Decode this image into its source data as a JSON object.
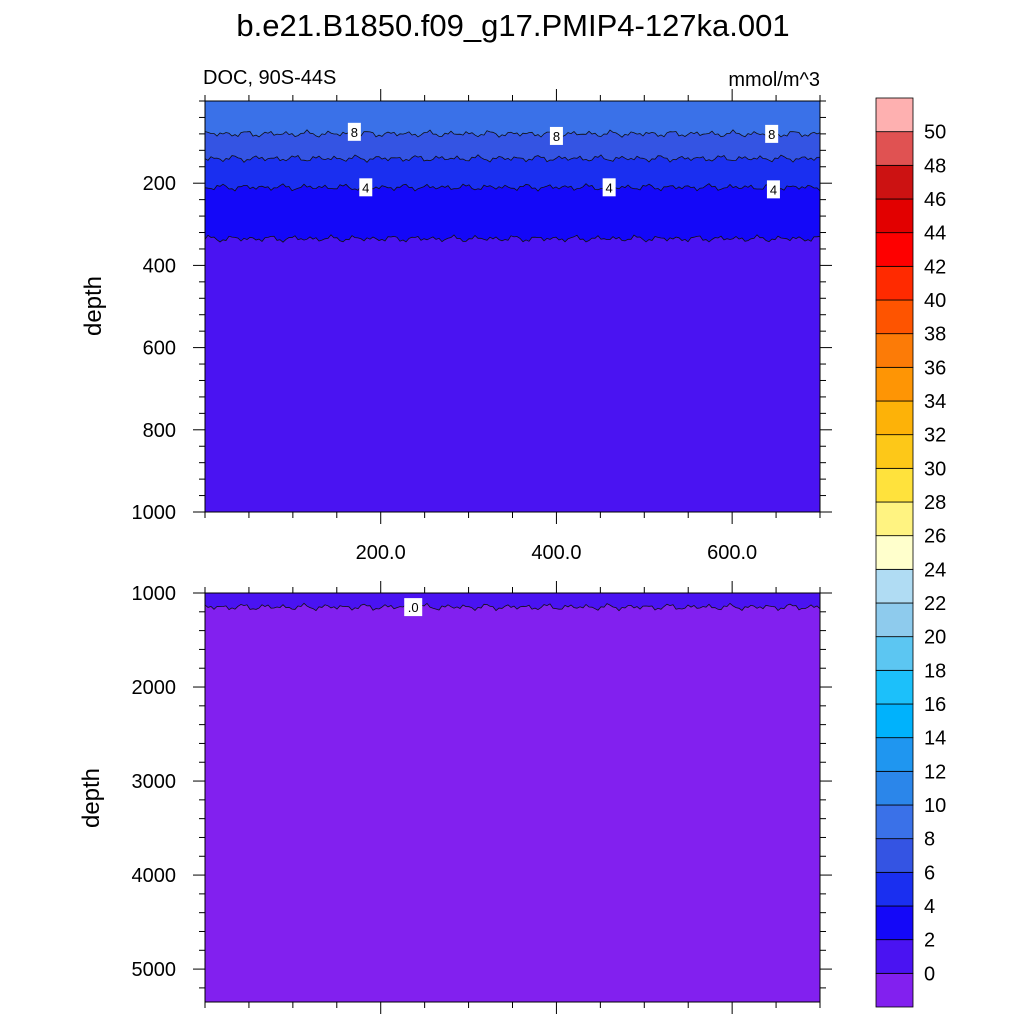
{
  "figure": {
    "title": "b.e21.B1850.f09_g17.PMIP4-127ka.001",
    "variable_label": "DOC, 90S-44S",
    "units_label": "mmol/m^3"
  },
  "chart_data": [
    {
      "type": "heatmap",
      "panel": "upper",
      "ylabel": "depth",
      "xlim": [
        0,
        700
      ],
      "ylim": [
        1000,
        0
      ],
      "x_ticks": [
        200,
        400,
        600
      ],
      "x_tick_labels": [
        "200.0",
        "400.0",
        "600.0"
      ],
      "y_ticks": [
        200,
        400,
        600,
        800,
        1000
      ],
      "y_tick_labels": [
        "200",
        "400",
        "600",
        "800",
        "1000"
      ],
      "layers": [
        {
          "from_depth": 0,
          "to_depth": 80,
          "range": "10-12"
        },
        {
          "from_depth": 80,
          "to_depth": 140,
          "range": "8-10"
        },
        {
          "from_depth": 140,
          "to_depth": 210,
          "range": "6-8"
        },
        {
          "from_depth": 210,
          "to_depth": 335,
          "range": "4-6"
        },
        {
          "from_depth": 335,
          "to_depth": 1000,
          "range": "2-4"
        }
      ],
      "contour_labels": [
        {
          "text": "8",
          "x": 170,
          "depth": 75
        },
        {
          "text": "8",
          "x": 400,
          "depth": 85
        },
        {
          "text": "8",
          "x": 645,
          "depth": 80
        },
        {
          "text": "4",
          "x": 183,
          "depth": 210
        },
        {
          "text": "4",
          "x": 460,
          "depth": 210
        },
        {
          "text": "4",
          "x": 647,
          "depth": 215
        }
      ]
    },
    {
      "type": "heatmap",
      "panel": "lower",
      "ylabel": "depth",
      "xlim": [
        0,
        700
      ],
      "ylim": [
        5350,
        1000
      ],
      "y_ticks": [
        1000,
        2000,
        3000,
        4000,
        5000
      ],
      "y_tick_labels": [
        "1000",
        "2000",
        "3000",
        "4000",
        "5000"
      ],
      "layers": [
        {
          "from_depth": 1000,
          "to_depth": 1150,
          "range": "2-4"
        },
        {
          "from_depth": 1150,
          "to_depth": 5350,
          "range": "0-2"
        }
      ],
      "contour_labels": [
        {
          "text": ".0",
          "x": 237,
          "depth": 1150
        }
      ]
    }
  ],
  "colorbar": {
    "labels": [
      "0",
      "2",
      "4",
      "6",
      "8",
      "10",
      "12",
      "14",
      "16",
      "18",
      "20",
      "22",
      "24",
      "26",
      "28",
      "30",
      "32",
      "34",
      "36",
      "38",
      "40",
      "42",
      "44",
      "46",
      "48",
      "50"
    ],
    "colors": [
      "#8220ef",
      "#4a13f2",
      "#1408f8",
      "#1a2ff0",
      "#3454e3",
      "#3a71e8",
      "#2b86ea",
      "#1f96f0",
      "#00b2fc",
      "#1cc0fa",
      "#5cc6f2",
      "#8ecbed",
      "#b0dcf3",
      "#ffffcc",
      "#fff381",
      "#ffe23c",
      "#fdc818",
      "#fdb208",
      "#fe9505",
      "#fc7b07",
      "#fe5400",
      "#ff2a00",
      "#fe0000",
      "#e20000",
      "#cc1212",
      "#e05252",
      "#feb0b0"
    ]
  },
  "layer_colors": {
    "0-2": "#8220ef",
    "2-4": "#4a13f2",
    "4-6": "#1408f8",
    "6-8": "#1a2ff0",
    "8-10": "#3454e3",
    "10-12": "#3a71e8"
  }
}
